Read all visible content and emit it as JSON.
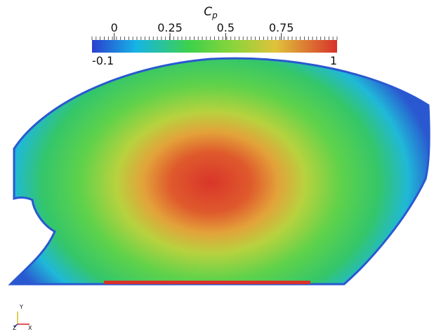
{
  "colorbar": {
    "title": "C",
    "title_subscript": "p",
    "range": [
      -0.1,
      1
    ],
    "ticks": [
      0,
      0.25,
      0.5,
      0.75
    ]
  },
  "axes_triad": {
    "y": "Y",
    "z": "Z",
    "x": "X"
  }
}
